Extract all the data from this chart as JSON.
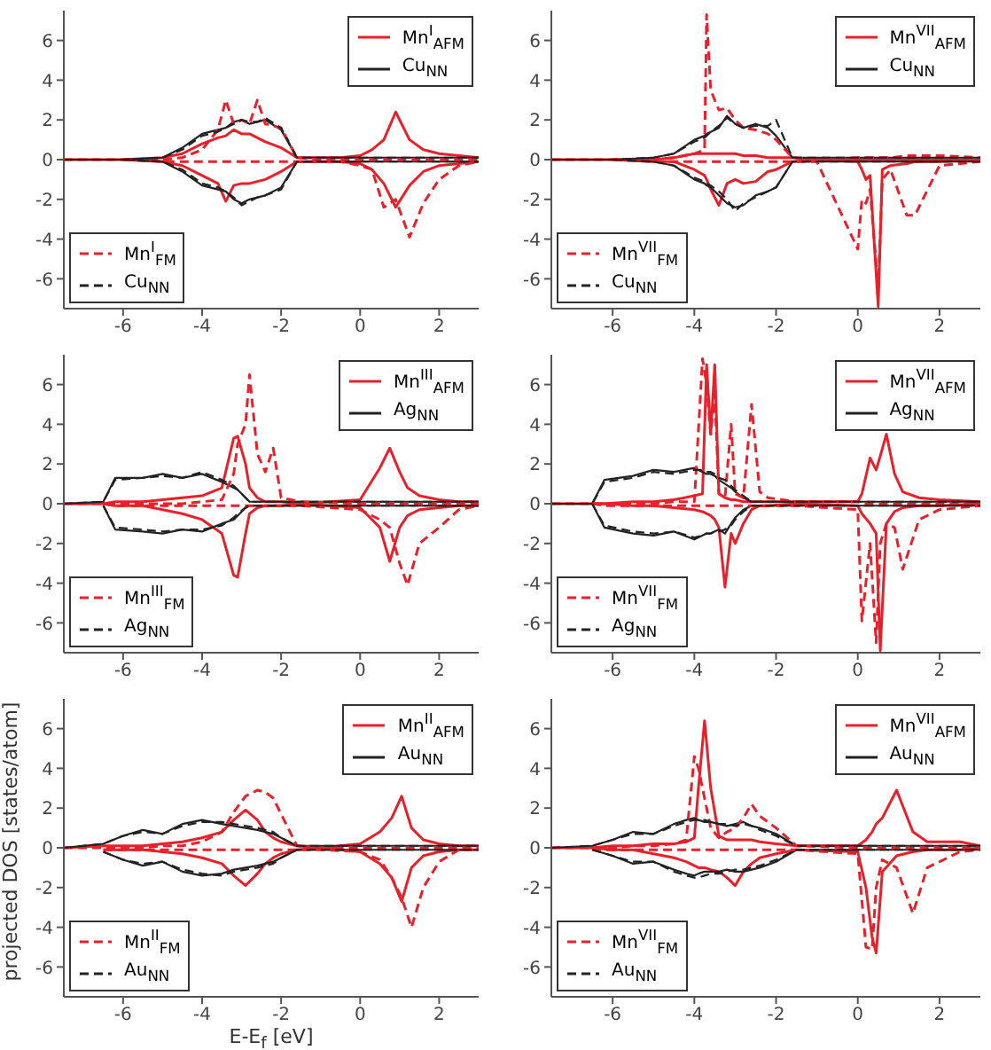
{
  "chart_data": [
    {
      "type": "line",
      "legend": "top right",
      "marker": "none",
      "xlim": [
        -7.5,
        3
      ],
      "ylim": [
        -7.5,
        7.5
      ],
      "xticks": [
        -6,
        -4,
        -2,
        0,
        2
      ],
      "yticks": [
        -6,
        -4,
        -2,
        0,
        2,
        4,
        6
      ],
      "x": [
        -7.5,
        -6,
        -5,
        -4.5,
        -4,
        -3.6,
        -3.4,
        -3.2,
        -3,
        -2.8,
        -2.6,
        -2.4,
        -2,
        -1.6,
        -1,
        -0.5,
        0,
        0.3,
        0.6,
        0.9,
        1.25,
        1.6,
        2,
        2.5,
        3
      ],
      "series": [
        {
          "name": "Mn$^{I}$$_{AFM}$",
          "color": "#e8202a",
          "line_style": "solid",
          "values": [
            0,
            0,
            0.1,
            0.3,
            0.8,
            1.1,
            1.2,
            1.5,
            1.3,
            1.3,
            1.1,
            0.9,
            0.6,
            0.1,
            0.1,
            0.1,
            0.2,
            0.5,
            1.0,
            2.4,
            1.0,
            0.5,
            0.3,
            0.2,
            0.1
          ]
        },
        {
          "color": "#e8202a",
          "line_style": "solid",
          "values": [
            null,
            0,
            -0.1,
            -0.3,
            -0.8,
            -1.2,
            -2.1,
            -1.3,
            -1.2,
            -1.2,
            -1.1,
            -1.0,
            -0.6,
            -0.1,
            -0.1,
            -0.1,
            -0.2,
            -0.5,
            -1.2,
            -2.4,
            -1.3,
            -0.6,
            -0.3,
            -0.2,
            -0.1
          ]
        },
        {
          "name": "Cu$_{NN}$",
          "color": "#222222",
          "line_style": "solid",
          "values": [
            0,
            0,
            0.1,
            0.6,
            1.3,
            1.5,
            1.6,
            1.9,
            2.0,
            1.8,
            1.9,
            2.0,
            1.5,
            0.1,
            0.1,
            0.1,
            0.1,
            0.1,
            0.1,
            0.1,
            0.1,
            0.1,
            0.1,
            0.1,
            0.1
          ]
        },
        {
          "color": "#222222",
          "line_style": "solid",
          "values": [
            null,
            0,
            -0.1,
            -0.6,
            -1.3,
            -1.5,
            -1.6,
            -2.0,
            -2.2,
            -2.0,
            -1.9,
            -1.8,
            -1.4,
            -0.1,
            -0.1,
            -0.1,
            -0.1,
            -0.1,
            -0.1,
            -0.1,
            -0.1,
            -0.1,
            -0.1,
            -0.1,
            -0.1
          ]
        },
        {
          "name": "Mn$^{I}$$_{FM}$",
          "color": "#e8202a",
          "line_style": "dashed",
          "values": [
            0,
            0,
            0,
            0.1,
            0.5,
            1.5,
            3.0,
            1.8,
            2.0,
            1.8,
            3.0,
            1.8,
            1.6,
            0.1,
            0,
            0,
            0,
            0,
            0,
            0,
            0,
            0,
            0,
            0,
            0
          ]
        },
        {
          "color": "#e8202a",
          "line_style": "dashed",
          "values": [
            null,
            0,
            -0.1,
            -0.1,
            -0.1,
            -0.1,
            -0.1,
            -0.1,
            -0.1,
            -0.1,
            -0.1,
            -0.1,
            -0.1,
            -0.1,
            -0.1,
            -0.1,
            -0.3,
            -0.5,
            -2.4,
            -2.0,
            -3.9,
            -2.2,
            -1.0,
            -0.3,
            -0.1
          ]
        },
        {
          "name": "Cu$_{NN}$",
          "color": "#222222",
          "line_style": "dashed",
          "values": [
            0,
            0,
            0.1,
            0.5,
            1.2,
            1.4,
            1.6,
            1.8,
            2.0,
            1.9,
            1.9,
            2.1,
            1.6,
            0.1,
            0.1,
            0.1,
            0.1,
            0.1,
            0.1,
            0.1,
            0.1,
            0.1,
            0.1,
            0.1,
            0.1
          ]
        },
        {
          "color": "#222222",
          "line_style": "dashed",
          "values": [
            null,
            0,
            -0.1,
            -0.5,
            -1.2,
            -1.4,
            -1.6,
            -1.9,
            -2.3,
            -2.1,
            -1.9,
            -1.8,
            -1.5,
            -0.1,
            -0.1,
            -0.1,
            -0.1,
            -0.1,
            -0.1,
            -0.1,
            -0.1,
            -0.1,
            -0.1,
            -0.1,
            -0.1
          ]
        }
      ]
    },
    {
      "type": "line",
      "legend": "top right",
      "marker": "none",
      "xlim": [
        -7.5,
        3
      ],
      "ylim": [
        -7.5,
        7.5
      ],
      "xticks": [
        -6,
        -4,
        -2,
        0,
        2
      ],
      "yticks": [
        -6,
        -4,
        -2,
        0,
        2,
        4,
        6
      ],
      "x": [
        -7.5,
        -6,
        -5,
        -4.5,
        -4,
        -3.75,
        -3.7,
        -3.6,
        -3.4,
        -3.2,
        -3,
        -2.8,
        -2.5,
        -2.2,
        -2,
        -1.6,
        -1,
        0,
        0.1,
        0.2,
        0.3,
        0.5,
        0.6,
        0.8,
        1.2,
        1.4,
        2,
        3
      ],
      "series": [
        {
          "name": "Mn$^{VII}$$_{AFM}$",
          "color": "#e8202a",
          "line_style": "solid",
          "values": [
            0,
            0,
            0,
            0.1,
            0.3,
            0.3,
            0.3,
            0.3,
            0.3,
            0.3,
            0.3,
            0.2,
            0.2,
            0.1,
            0.1,
            0.1,
            0,
            0,
            0,
            0,
            0,
            0,
            0,
            0,
            0,
            0,
            0,
            0
          ]
        },
        {
          "color": "#e8202a",
          "line_style": "solid",
          "values": [
            null,
            0,
            -0.1,
            -0.1,
            -0.5,
            -0.8,
            -1.0,
            -1.5,
            -2.3,
            -1.2,
            -1.0,
            -1.2,
            -1.1,
            -0.6,
            -0.5,
            -0.1,
            0,
            -0.1,
            -0.5,
            -1.0,
            -0.8,
            -7.4,
            -0.5,
            -0.3,
            -0.2,
            -0.1,
            -0.1,
            0
          ]
        },
        {
          "name": "Cu$_{NN}$",
          "color": "#222222",
          "line_style": "solid",
          "values": [
            0,
            0,
            0.1,
            0.3,
            1.0,
            1.2,
            1.3,
            1.4,
            1.6,
            2.2,
            1.8,
            1.6,
            1.8,
            1.6,
            1.2,
            0.1,
            0.1,
            0.1,
            0.1,
            0.1,
            0.1,
            0.1,
            0.1,
            0.1,
            0.1,
            0.1,
            0.1,
            0.1
          ]
        },
        {
          "color": "#222222",
          "line_style": "solid",
          "values": [
            null,
            0,
            -0.1,
            -0.3,
            -1.0,
            -1.2,
            -1.3,
            -1.4,
            -1.8,
            -2.2,
            -2.4,
            -2.3,
            -1.8,
            -1.6,
            -1.4,
            -0.1,
            -0.1,
            -0.1,
            -0.1,
            -0.1,
            -0.1,
            -0.1,
            -0.1,
            -0.1,
            -0.1,
            -0.1,
            -0.1,
            -0.1
          ]
        },
        {
          "name": "Mn$^{VII}$$_{FM}$",
          "color": "#e8202a",
          "line_style": "dashed",
          "values": [
            0,
            0,
            0,
            0.1,
            0.3,
            0.5,
            7.3,
            3.5,
            2.5,
            2.6,
            2.0,
            1.6,
            1.5,
            1.3,
            1.0,
            0.1,
            0,
            0.1,
            0.1,
            0.1,
            0.1,
            0.1,
            0.1,
            0.1,
            0.2,
            0.2,
            0.2,
            0.1
          ]
        },
        {
          "color": "#e8202a",
          "line_style": "dashed",
          "values": [
            null,
            0,
            -0.1,
            -0.1,
            -0.1,
            -0.1,
            -0.1,
            -0.1,
            -0.1,
            -0.1,
            -0.1,
            -0.1,
            -0.1,
            -0.1,
            -0.1,
            -0.1,
            -0.1,
            -4.5,
            -2.0,
            -2.2,
            -1.5,
            -6.5,
            -1.0,
            -0.5,
            -2.8,
            -2.8,
            -0.3,
            -0.1
          ]
        },
        {
          "name": "Cu$_{NN}$",
          "color": "#222222",
          "line_style": "dashed",
          "values": [
            0,
            0,
            0.1,
            0.3,
            0.9,
            1.1,
            1.2,
            1.4,
            1.7,
            2.1,
            1.8,
            1.6,
            1.7,
            1.7,
            2.0,
            0.1,
            0.1,
            0.1,
            0.1,
            0.1,
            0.1,
            0.1,
            0.1,
            0.1,
            0.1,
            0.1,
            0.1,
            0.1
          ]
        },
        {
          "color": "#222222",
          "line_style": "dashed",
          "values": [
            null,
            0,
            -0.1,
            -0.3,
            -0.9,
            -1.1,
            -1.2,
            -1.3,
            -1.6,
            -2.0,
            -2.6,
            -2.2,
            -1.9,
            -1.6,
            -1.4,
            -0.1,
            -0.1,
            -0.1,
            -0.1,
            -0.1,
            -0.1,
            -0.1,
            -0.1,
            -0.1,
            -0.1,
            -0.1,
            -0.1,
            -0.1
          ]
        }
      ]
    },
    {
      "type": "line",
      "legend": "top right",
      "marker": "none",
      "xlim": [
        -7.5,
        3
      ],
      "ylim": [
        -7.5,
        7.5
      ],
      "xticks": [
        -6,
        -4,
        -2,
        0,
        2
      ],
      "yticks": [
        -6,
        -4,
        -2,
        0,
        2,
        4,
        6
      ],
      "x": [
        -7.5,
        -6.5,
        -6.2,
        -5.5,
        -5,
        -4.5,
        -4,
        -3.5,
        -3.2,
        -3.1,
        -2.9,
        -2.8,
        -2.6,
        -2.4,
        -2.2,
        -2,
        -1.5,
        0,
        0.5,
        0.75,
        1,
        1.2,
        1.5,
        2,
        2.5,
        3
      ],
      "series": [
        {
          "name": "Mn$^{III}$$_{AFM}$",
          "color": "#e8202a",
          "line_style": "solid",
          "values": [
            0,
            0,
            0.1,
            0.1,
            0.2,
            0.3,
            0.4,
            0.8,
            3.3,
            3.4,
            2.0,
            0.8,
            0.3,
            0.1,
            0.1,
            0.1,
            0,
            0.2,
            1.8,
            2.8,
            1.6,
            0.8,
            0.4,
            0.2,
            0.1,
            0.1
          ]
        },
        {
          "color": "#e8202a",
          "line_style": "solid",
          "values": [
            null,
            0,
            -0.1,
            -0.1,
            -0.3,
            -0.5,
            -0.8,
            -1.5,
            -3.6,
            -3.7,
            -1.5,
            -0.5,
            -0.2,
            -0.1,
            -0.1,
            -0.1,
            0,
            -0.2,
            -1.2,
            -2.9,
            -1.2,
            -0.6,
            -0.3,
            -0.2,
            -0.1,
            -0.1
          ]
        },
        {
          "name": "Ag$_{NN}$",
          "color": "#222222",
          "line_style": "solid",
          "values": [
            0,
            0.1,
            1.3,
            1.3,
            1.5,
            1.3,
            1.5,
            1.1,
            0.8,
            0.7,
            0.3,
            0.1,
            0.1,
            0.1,
            0.1,
            0.1,
            0.1,
            0.1,
            0.1,
            0.1,
            0.1,
            0.1,
            0.1,
            0.1,
            0.1,
            0.1
          ]
        },
        {
          "color": "#222222",
          "line_style": "solid",
          "values": [
            null,
            -0.1,
            -1.3,
            -1.4,
            -1.5,
            -1.3,
            -1.4,
            -1.0,
            -0.8,
            -0.6,
            -0.2,
            -0.1,
            -0.1,
            -0.1,
            -0.1,
            -0.1,
            -0.1,
            -0.1,
            -0.1,
            -0.1,
            -0.1,
            -0.1,
            -0.1,
            -0.1,
            -0.1,
            -0.1
          ]
        },
        {
          "name": "Mn$^{III}$$_{FM}$",
          "color": "#e8202a",
          "line_style": "dashed",
          "values": [
            0,
            0,
            0,
            0,
            0,
            0,
            0.1,
            0.2,
            1.5,
            3.0,
            4.0,
            6.5,
            2.5,
            1.6,
            2.8,
            0.3,
            0.1,
            0,
            0,
            0,
            0,
            0,
            0,
            0,
            0,
            0
          ]
        },
        {
          "color": "#e8202a",
          "line_style": "dashed",
          "values": [
            null,
            0,
            -0.1,
            -0.1,
            -0.1,
            -0.1,
            -0.1,
            -0.1,
            -0.1,
            -0.1,
            -0.1,
            -0.1,
            -0.1,
            -0.1,
            -0.1,
            -0.1,
            -0.1,
            -0.3,
            -0.8,
            -1.2,
            -3.0,
            -4.1,
            -2.0,
            -1.2,
            -0.3,
            -0.1
          ]
        },
        {
          "name": "Ag$_{NN}$",
          "color": "#222222",
          "line_style": "dashed",
          "values": [
            0,
            0.1,
            1.2,
            1.3,
            1.4,
            1.3,
            1.6,
            1.2,
            0.9,
            0.7,
            0.3,
            0.1,
            0.1,
            0.1,
            0.1,
            0.1,
            0.1,
            0.1,
            0.1,
            0.1,
            0.1,
            0.1,
            0.1,
            0.1,
            0.1,
            0.1
          ]
        },
        {
          "color": "#222222",
          "line_style": "dashed",
          "values": [
            null,
            -0.1,
            -1.2,
            -1.3,
            -1.4,
            -1.3,
            -1.3,
            -1.1,
            -0.7,
            -0.5,
            -0.2,
            -0.1,
            -0.1,
            -0.1,
            -0.1,
            -0.1,
            -0.1,
            -0.1,
            -0.1,
            -0.1,
            -0.1,
            -0.1,
            -0.1,
            -0.1,
            -0.1,
            -0.1
          ]
        }
      ]
    },
    {
      "type": "line",
      "legend": "top right",
      "marker": "none",
      "xlim": [
        -7.5,
        3
      ],
      "ylim": [
        -7.5,
        7.5
      ],
      "xticks": [
        -6,
        -4,
        -2,
        0,
        2
      ],
      "yticks": [
        -6,
        -4,
        -2,
        0,
        2,
        4,
        6
      ],
      "x": [
        -7.5,
        -6.5,
        -6.2,
        -5.5,
        -5,
        -4.5,
        -4,
        -3.8,
        -3.7,
        -3.6,
        -3.5,
        -3.4,
        -3.25,
        -3.1,
        -3.0,
        -2.8,
        -2.6,
        -2.4,
        -2.2,
        -1.5,
        0,
        0.1,
        0.3,
        0.45,
        0.55,
        0.7,
        0.9,
        1.1,
        1.5,
        2,
        3
      ],
      "series": [
        {
          "name": "Mn$^{VII}$$_{AFM}$",
          "color": "#e8202a",
          "line_style": "solid",
          "values": [
            0,
            0,
            0,
            0.1,
            0.1,
            0.2,
            0.4,
            0.5,
            7.0,
            3.5,
            7.0,
            0.5,
            0.3,
            0.2,
            0.2,
            0.1,
            0.1,
            0.1,
            0.1,
            0.1,
            0.1,
            0.5,
            2.3,
            1.7,
            2.4,
            3.5,
            1.5,
            0.6,
            0.3,
            0.2,
            0.1
          ]
        },
        {
          "color": "#e8202a",
          "line_style": "solid",
          "values": [
            null,
            0,
            0,
            -0.1,
            -0.1,
            -0.2,
            -0.3,
            -0.4,
            -0.5,
            -0.6,
            -0.8,
            -1.2,
            -4.2,
            -1.5,
            -2.0,
            -1.0,
            -0.3,
            -0.1,
            -0.1,
            0,
            -0.1,
            -0.5,
            -1.0,
            -1.5,
            -7.4,
            -1.0,
            -0.4,
            -0.2,
            -0.1,
            -0.1,
            0
          ]
        },
        {
          "name": "Ag$_{NN}$",
          "color": "#222222",
          "line_style": "solid",
          "values": [
            0,
            0,
            1.2,
            1.4,
            1.7,
            1.6,
            1.8,
            1.6,
            1.5,
            1.5,
            1.4,
            1.2,
            1.0,
            0.8,
            0.6,
            0.3,
            0.1,
            0.1,
            0.1,
            0.1,
            0.1,
            0.1,
            0.1,
            0.1,
            0.1,
            0.1,
            0.1,
            0.1,
            0.1,
            0.1,
            0.1
          ]
        },
        {
          "color": "#222222",
          "line_style": "solid",
          "values": [
            null,
            0,
            -1.2,
            -1.5,
            -1.6,
            -1.4,
            -1.8,
            -1.6,
            -1.5,
            -1.5,
            -1.4,
            -1.3,
            -1.5,
            -1.0,
            -0.7,
            -0.3,
            -0.1,
            -0.1,
            -0.1,
            -0.1,
            -0.1,
            -0.1,
            -0.1,
            -0.1,
            -0.1,
            -0.1,
            -0.1,
            -0.1,
            -0.1,
            -0.1,
            -0.1
          ]
        },
        {
          "name": "Mn$^{VII}$$_{FM}$",
          "color": "#e8202a",
          "line_style": "dashed",
          "values": [
            0,
            0,
            0,
            0,
            0,
            0.1,
            0.1,
            7.3,
            6.0,
            3.5,
            5.5,
            0.5,
            0.3,
            4.0,
            0.5,
            0.3,
            5.0,
            0.6,
            0.3,
            0.1,
            0.1,
            0,
            0,
            0,
            0,
            0,
            0,
            0,
            0,
            0,
            0
          ]
        },
        {
          "color": "#e8202a",
          "line_style": "dashed",
          "values": [
            null,
            0,
            -0.1,
            -0.1,
            -0.1,
            -0.1,
            -0.1,
            -0.1,
            -0.1,
            -0.1,
            -0.1,
            -0.1,
            -0.1,
            -0.1,
            -0.1,
            -0.1,
            -0.1,
            -0.1,
            -0.1,
            -0.1,
            -0.3,
            -5.9,
            -2.0,
            -7.0,
            -2.0,
            -1.0,
            -1.2,
            -3.3,
            -0.8,
            -0.3,
            -0.1
          ]
        },
        {
          "name": "Ag$_{NN}$",
          "color": "#222222",
          "line_style": "dashed",
          "values": [
            0,
            0,
            1.1,
            1.3,
            1.6,
            1.5,
            1.7,
            1.7,
            1.6,
            1.6,
            1.5,
            1.3,
            1.2,
            0.9,
            0.7,
            0.4,
            0.1,
            0.1,
            0.1,
            0.1,
            0.1,
            0.1,
            0.1,
            0.1,
            0.1,
            0.1,
            0.1,
            0.1,
            0.1,
            0.1,
            0.1
          ]
        },
        {
          "color": "#222222",
          "line_style": "dashed",
          "values": [
            null,
            0,
            -1.1,
            -1.4,
            -1.5,
            -1.4,
            -1.7,
            -1.6,
            -1.5,
            -1.5,
            -1.4,
            -1.4,
            -1.3,
            -1.1,
            -0.8,
            -0.4,
            -0.1,
            -0.1,
            -0.1,
            -0.1,
            -0.1,
            -0.1,
            -0.1,
            -0.1,
            -0.1,
            -0.1,
            -0.1,
            -0.1,
            -0.1,
            -0.1,
            -0.1
          ]
        }
      ]
    },
    {
      "type": "line",
      "legend": "top right",
      "marker": "none",
      "xlabel": "E-E$_{f}$ [eV]",
      "ylabel": "projected DOS [states/atom]",
      "xlim": [
        -7.5,
        3
      ],
      "ylim": [
        -7.5,
        7.5
      ],
      "xticks": [
        -6,
        -4,
        -2,
        0,
        2
      ],
      "yticks": [
        -6,
        -4,
        -2,
        0,
        2,
        4,
        6
      ],
      "x": [
        -7.5,
        -6.5,
        -6,
        -5.5,
        -5,
        -4.5,
        -4,
        -3.5,
        -3.2,
        -2.9,
        -2.6,
        -2.4,
        -2.2,
        -2,
        -1.6,
        -1,
        0,
        0.5,
        0.8,
        1.05,
        1.3,
        1.6,
        2,
        2.5,
        3
      ],
      "series": [
        {
          "name": "Mn$^{II}$$_{AFM}$",
          "color": "#e8202a",
          "line_style": "solid",
          "values": [
            0,
            0.1,
            0.1,
            0.1,
            0.2,
            0.3,
            0.5,
            0.8,
            1.4,
            1.9,
            1.4,
            0.8,
            0.5,
            0.3,
            0.1,
            0,
            0.2,
            0.8,
            1.5,
            2.6,
            1.0,
            0.4,
            0.2,
            0.1,
            0.1
          ]
        },
        {
          "color": "#e8202a",
          "line_style": "solid",
          "values": [
            null,
            -0.1,
            -0.1,
            -0.1,
            -0.2,
            -0.3,
            -0.5,
            -0.8,
            -1.4,
            -1.9,
            -1.3,
            -0.8,
            -0.5,
            -0.3,
            -0.1,
            0,
            -0.2,
            -0.8,
            -1.5,
            -2.7,
            -1.0,
            -0.4,
            -0.2,
            -0.1,
            -0.1
          ]
        },
        {
          "name": "Au$_{NN}$",
          "color": "#222222",
          "line_style": "solid",
          "values": [
            0,
            0.2,
            0.6,
            0.9,
            0.7,
            1.2,
            1.4,
            1.2,
            1.1,
            1.0,
            0.9,
            0.8,
            0.7,
            0.5,
            0.1,
            0.1,
            0.1,
            0.1,
            0.1,
            0.1,
            0.1,
            0.1,
            0.1,
            0.1,
            0.1
          ]
        },
        {
          "color": "#222222",
          "line_style": "solid",
          "values": [
            null,
            -0.2,
            -0.6,
            -0.9,
            -0.7,
            -1.2,
            -1.4,
            -1.3,
            -1.1,
            -1.0,
            -0.9,
            -0.8,
            -0.7,
            -0.5,
            -0.1,
            -0.1,
            -0.1,
            -0.1,
            -0.1,
            -0.1,
            -0.1,
            -0.1,
            -0.1,
            -0.1,
            -0.1
          ]
        },
        {
          "name": "Mn$^{II}$$_{FM}$",
          "color": "#e8202a",
          "line_style": "dashed",
          "values": [
            0,
            0,
            0,
            0,
            0.1,
            0.1,
            0.3,
            0.8,
            1.8,
            2.6,
            2.9,
            2.8,
            2.5,
            1.7,
            0.1,
            0,
            0,
            0,
            0,
            0,
            0,
            0,
            0,
            0,
            0
          ]
        },
        {
          "color": "#e8202a",
          "line_style": "dashed",
          "values": [
            null,
            -0.1,
            -0.1,
            -0.1,
            -0.1,
            -0.1,
            -0.1,
            -0.1,
            -0.1,
            -0.1,
            -0.1,
            -0.1,
            -0.1,
            -0.1,
            -0.1,
            -0.1,
            -0.2,
            -0.6,
            -1.5,
            -2.5,
            -4.0,
            -2.0,
            -0.7,
            -0.1,
            -0.1
          ]
        },
        {
          "name": "Au$_{NN}$",
          "color": "#222222",
          "line_style": "dashed",
          "values": [
            0,
            0.2,
            0.6,
            0.8,
            0.7,
            1.1,
            1.3,
            1.3,
            1.2,
            1.1,
            1.0,
            0.9,
            0.8,
            0.5,
            0.1,
            0.1,
            0.1,
            0.1,
            0.1,
            0.1,
            0.1,
            0.1,
            0.1,
            0.1,
            0.1
          ]
        },
        {
          "color": "#222222",
          "line_style": "dashed",
          "values": [
            null,
            -0.2,
            -0.6,
            -0.8,
            -0.7,
            -1.1,
            -1.3,
            -1.4,
            -1.2,
            -1.1,
            -1.0,
            -0.9,
            -0.8,
            -0.5,
            -0.1,
            -0.1,
            -0.1,
            -0.1,
            -0.1,
            -0.1,
            -0.1,
            -0.1,
            -0.1,
            -0.1,
            -0.1
          ]
        }
      ]
    },
    {
      "type": "line",
      "legend": "top right",
      "marker": "none",
      "xlim": [
        -7.5,
        3
      ],
      "ylim": [
        -7.5,
        7.5
      ],
      "xticks": [
        -6,
        -4,
        -2,
        0,
        2
      ],
      "yticks": [
        -6,
        -4,
        -2,
        0,
        2,
        4,
        6
      ],
      "x": [
        -7.5,
        -6.5,
        -6,
        -5.5,
        -5,
        -4.5,
        -4.2,
        -4,
        -3.9,
        -3.75,
        -3.6,
        -3.4,
        -3.2,
        -3,
        -2.8,
        -2.6,
        -2.4,
        -2,
        -1.5,
        0,
        0.2,
        0.35,
        0.45,
        0.6,
        0.95,
        1.35,
        1.7,
        2.5,
        3
      ],
      "series": [
        {
          "name": "Mn$^{VII}$$_{AFM}$",
          "color": "#e8202a",
          "line_style": "solid",
          "values": [
            0,
            0,
            0.1,
            0.1,
            0.2,
            0.2,
            0.3,
            0.5,
            3.0,
            6.4,
            3.0,
            0.6,
            0.4,
            0.4,
            0.4,
            0.4,
            0.3,
            0.2,
            0.1,
            0.1,
            0.4,
            0.8,
            1.2,
            1.5,
            2.9,
            0.8,
            0.3,
            0.3,
            0.1
          ]
        },
        {
          "color": "#e8202a",
          "line_style": "solid",
          "values": [
            null,
            0,
            -0.1,
            -0.1,
            -0.3,
            -0.5,
            -0.7,
            -0.9,
            -1.0,
            -1.0,
            -1.1,
            -1.2,
            -1.5,
            -1.9,
            -1.2,
            -0.8,
            -0.5,
            -0.3,
            -0.1,
            -0.2,
            -2.0,
            -4.5,
            -5.3,
            -1.2,
            -0.4,
            -0.2,
            -0.1,
            -0.1,
            0
          ]
        },
        {
          "name": "Au$_{NN}$",
          "color": "#222222",
          "line_style": "solid",
          "values": [
            0,
            0.1,
            0.4,
            0.8,
            0.7,
            1.2,
            1.4,
            1.5,
            1.4,
            1.3,
            1.3,
            1.2,
            1.1,
            1.2,
            1.3,
            1.1,
            1.0,
            0.7,
            0.1,
            0.1,
            0.1,
            0.1,
            0.1,
            0.1,
            0.1,
            0.1,
            0.1,
            0.1,
            0.1
          ]
        },
        {
          "color": "#222222",
          "line_style": "solid",
          "values": [
            null,
            -0.1,
            -0.4,
            -0.8,
            -0.7,
            -1.1,
            -1.3,
            -1.4,
            -1.3,
            -1.2,
            -1.2,
            -1.2,
            -1.1,
            -1.2,
            -1.2,
            -1.1,
            -1.0,
            -0.7,
            -0.1,
            -0.1,
            -0.1,
            -0.1,
            -0.1,
            -0.1,
            -0.1,
            -0.1,
            -0.1,
            -0.1,
            -0.1
          ]
        },
        {
          "name": "Mn$^{VII}$$_{FM}$",
          "color": "#e8202a",
          "line_style": "dashed",
          "values": [
            0,
            0,
            0,
            0.1,
            0.1,
            0.2,
            0.4,
            4.6,
            4.0,
            2.5,
            1.0,
            0.5,
            0.8,
            1.0,
            1.5,
            2.2,
            1.6,
            1.0,
            0.1,
            0,
            0,
            0,
            0,
            0,
            0,
            0,
            0,
            0,
            0
          ]
        },
        {
          "color": "#e8202a",
          "line_style": "dashed",
          "values": [
            null,
            -0.1,
            -0.1,
            -0.1,
            -0.1,
            -0.1,
            -0.1,
            -0.1,
            -0.1,
            -0.1,
            -0.1,
            -0.1,
            -0.1,
            -0.1,
            -0.1,
            -0.1,
            -0.1,
            -0.1,
            -0.1,
            -0.3,
            -5.0,
            -5.1,
            -2.0,
            -0.6,
            -1.0,
            -3.3,
            -1.0,
            -0.2,
            -0.1
          ]
        },
        {
          "name": "Au$_{NN}$",
          "color": "#222222",
          "line_style": "dashed",
          "values": [
            0,
            0.1,
            0.4,
            0.7,
            0.7,
            1.1,
            1.3,
            1.4,
            1.4,
            1.4,
            1.3,
            1.2,
            1.2,
            1.1,
            1.2,
            1.1,
            0.9,
            0.6,
            0.1,
            0.1,
            0.1,
            0.1,
            0.1,
            0.1,
            0.1,
            0.1,
            0.1,
            0.1,
            0.1
          ]
        },
        {
          "color": "#222222",
          "line_style": "dashed",
          "values": [
            null,
            -0.1,
            -0.4,
            -0.7,
            -0.7,
            -1.2,
            -1.4,
            -1.5,
            -1.5,
            -1.4,
            -1.3,
            -1.3,
            -1.2,
            -1.1,
            -1.1,
            -1.0,
            -0.9,
            -0.6,
            -0.1,
            -0.1,
            -0.1,
            -0.1,
            -0.1,
            -0.1,
            -0.1,
            -0.1,
            -0.1,
            -0.1,
            -0.1
          ]
        }
      ]
    }
  ]
}
